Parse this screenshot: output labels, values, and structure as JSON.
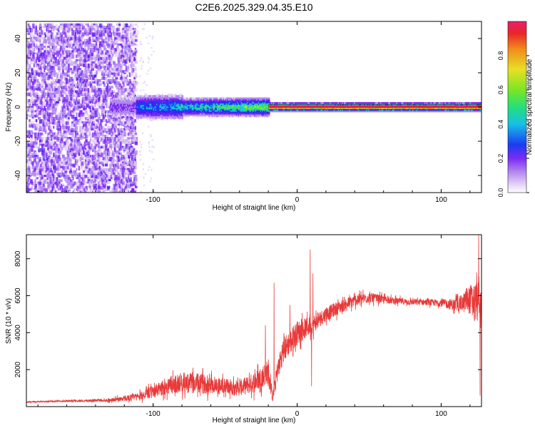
{
  "title": "C2E6.2025.329.04.35.E10",
  "colors": {
    "snr_line": "#e83a3a",
    "colormap": [
      "#ffffff",
      "#e2d0f6",
      "#b388ee",
      "#7b2bf3",
      "#4a1ef2",
      "#1b3cf3",
      "#18c0e6",
      "#24e07a",
      "#7ae624",
      "#e9e023",
      "#f08a1c",
      "#e8262a",
      "#e6206a"
    ]
  },
  "chart_data": [
    {
      "type": "heatmap",
      "xlabel": "Height of straight line (km)",
      "ylabel": "Frequency (Hz)",
      "xlim": [
        -188,
        128
      ],
      "ylim": [
        -50,
        50
      ],
      "xticks": [
        -100,
        0,
        100
      ],
      "xtick_labels": [
        "-100",
        "0",
        "100"
      ],
      "yticks": [
        -40,
        -20,
        0,
        20,
        40
      ],
      "ytick_labels": [
        "-40",
        "-20",
        "0",
        "20",
        "40"
      ],
      "colorbar": {
        "label": "Normalized spectral amplitude",
        "range": [
          0.0,
          1.0
        ],
        "ticks": [
          0.0,
          0.2,
          0.4,
          0.6,
          0.8
        ],
        "tick_labels": [
          "0.0",
          "0.2",
          "0.4",
          "0.6",
          "0.8"
        ]
      },
      "description_points": [
        {
          "x_start": -188,
          "x_end": -112,
          "pattern": "broadband scattered noise"
        },
        {
          "x_start": -112,
          "x_end": -20,
          "pattern": "band near 0 Hz, amplitude rising"
        },
        {
          "x_start": -20,
          "x_end": 128,
          "pattern": "strong narrow carrier at ~0 Hz"
        }
      ]
    },
    {
      "type": "line",
      "xlabel": "Height of straight line (km)",
      "ylabel": "SNR (10 * v/v)",
      "xlim": [
        -188,
        128
      ],
      "ylim": [
        0,
        9300
      ],
      "xticks": [
        -100,
        0,
        100
      ],
      "xtick_labels": [
        "-100",
        "0",
        "100"
      ],
      "yticks": [
        2000,
        4000,
        6000,
        8000
      ],
      "ytick_labels": [
        "2000",
        "4000",
        "6000",
        "8000"
      ],
      "trend": {
        "x": [
          -188,
          -160,
          -130,
          -110,
          -100,
          -90,
          -80,
          -70,
          -60,
          -50,
          -40,
          -30,
          -20,
          -17,
          -14,
          -10,
          -5,
          0,
          5,
          10,
          20,
          30,
          40,
          50,
          60,
          70,
          80,
          90,
          100,
          110,
          115,
          120,
          125,
          128
        ],
        "y": [
          250,
          300,
          350,
          550,
          800,
          1100,
          1300,
          1250,
          1200,
          1100,
          1000,
          1300,
          1900,
          500,
          1800,
          3000,
          3500,
          4000,
          4200,
          4400,
          5000,
          5400,
          5750,
          5900,
          5800,
          5700,
          5650,
          5650,
          5600,
          5500,
          5600,
          5800,
          5700,
          5200
        ],
        "noise": [
          30,
          50,
          90,
          200,
          350,
          450,
          550,
          550,
          500,
          450,
          420,
          550,
          650,
          300,
          600,
          700,
          650,
          650,
          550,
          500,
          400,
          350,
          320,
          280,
          200,
          180,
          170,
          170,
          200,
          350,
          500,
          800,
          1100,
          1300
        ]
      },
      "spikes": [
        {
          "x": -16,
          "y": 6700
        },
        {
          "x": -22,
          "y": 4400
        },
        {
          "x": -5,
          "y": 5500
        },
        {
          "x": 9,
          "y": 8500
        },
        {
          "x": 10,
          "y": 1100
        },
        {
          "x": 11,
          "y": 7200
        },
        {
          "x": 126,
          "y": 9300
        },
        {
          "x": 127,
          "y": 600
        }
      ]
    }
  ]
}
